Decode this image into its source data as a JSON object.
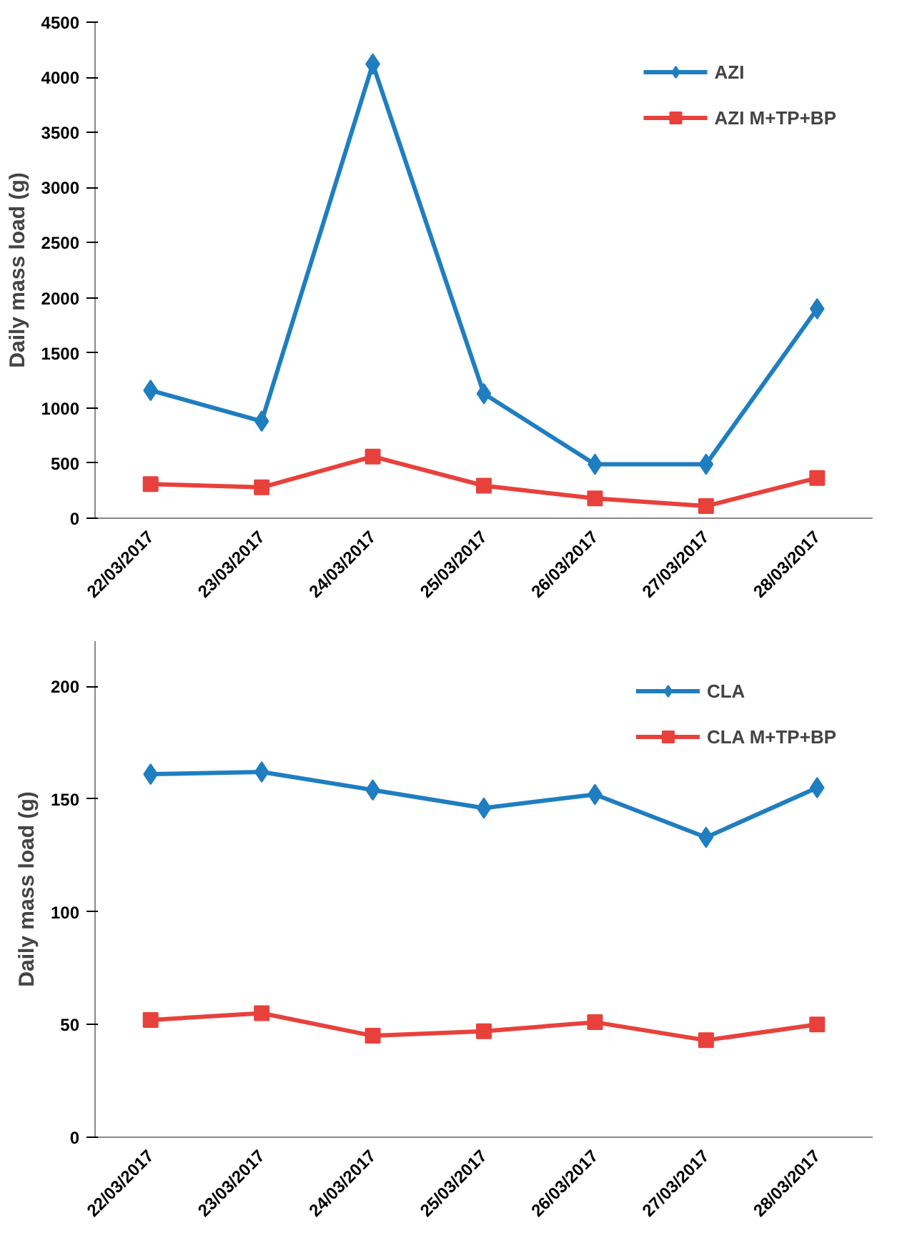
{
  "chart_data": [
    {
      "type": "line",
      "ylabel": "Daily mass load (g)",
      "categories": [
        "22/03/2017",
        "23/03/2017",
        "24/03/2017",
        "25/03/2017",
        "26/03/2017",
        "27/03/2017",
        "28/03/2017"
      ],
      "ylim": [
        0,
        4500
      ],
      "yticks": [
        0,
        500,
        1000,
        1500,
        2000,
        2500,
        3000,
        3500,
        4000,
        4500
      ],
      "grid": false,
      "legend": "top right",
      "series": [
        {
          "name": "AZI",
          "color": "#1f7ec0",
          "marker": "diamond",
          "values": [
            1160,
            880,
            4120,
            1130,
            490,
            490,
            1900
          ]
        },
        {
          "name": "AZI M+TP+BP",
          "color": "#e8413c",
          "marker": "square",
          "values": [
            310,
            280,
            560,
            295,
            180,
            110,
            365
          ]
        }
      ]
    },
    {
      "type": "line",
      "ylabel": "Daily mass load (g)",
      "categories": [
        "22/03/2017",
        "23/03/2017",
        "24/03/2017",
        "25/03/2017",
        "26/03/2017",
        "27/03/2017",
        "28/03/2017"
      ],
      "ylim": [
        0,
        220
      ],
      "yticks": [
        0,
        50,
        100,
        150,
        200
      ],
      "grid": false,
      "legend": "top right",
      "series": [
        {
          "name": "CLA",
          "color": "#1f7ec0",
          "marker": "diamond",
          "values": [
            161,
            162,
            154,
            146,
            152,
            133,
            155
          ]
        },
        {
          "name": "CLA M+TP+BP",
          "color": "#e8413c",
          "marker": "square",
          "values": [
            52,
            55,
            45,
            47,
            51,
            43,
            50
          ]
        }
      ]
    }
  ]
}
